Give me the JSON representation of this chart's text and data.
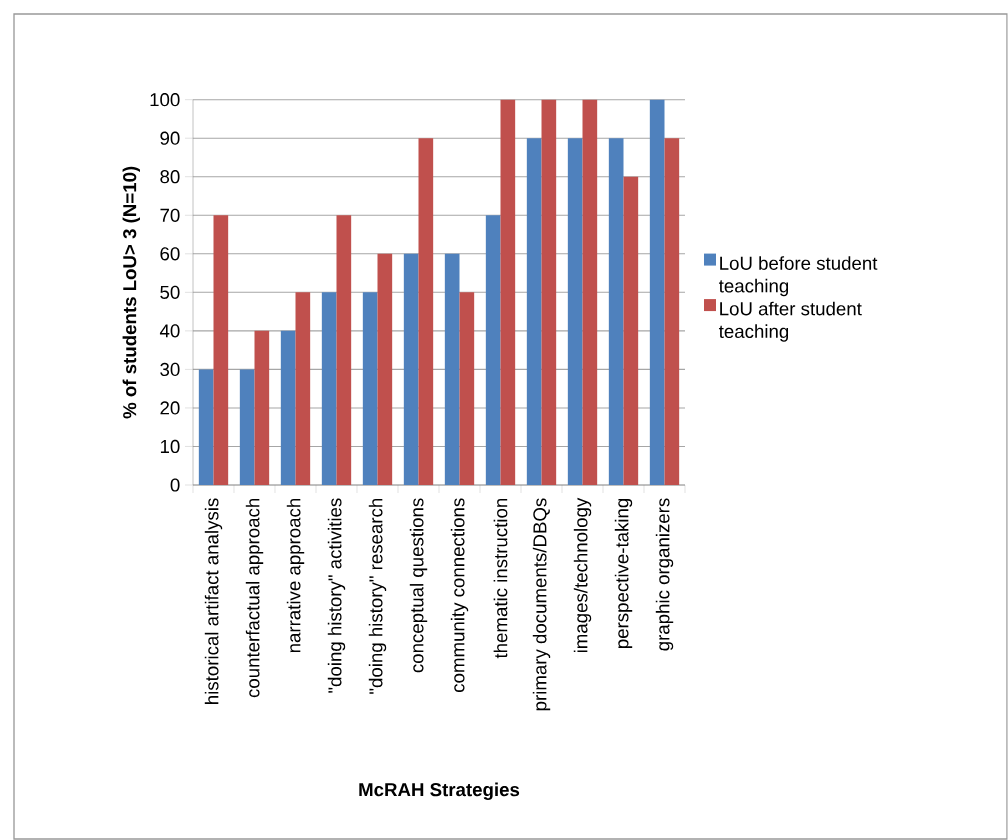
{
  "chart_data": {
    "type": "bar",
    "xlabel": "McRAH Strategies",
    "ylabel": "% of students  LoU> 3 (N=10)",
    "categories": [
      "historical artifact analysis",
      "counterfactual approach",
      "narrative approach",
      "\"doing history\" activities",
      "\"doing history\" research",
      "conceptual questions",
      "community connections",
      "thematic instruction",
      "primary documents/DBQs",
      "images/technology",
      "perspective-taking",
      "graphic organizers"
    ],
    "series": [
      {
        "name": "LoU before student teaching",
        "color": "#4f81bd",
        "values": [
          30,
          30,
          40,
          50,
          50,
          60,
          60,
          70,
          90,
          90,
          90,
          100
        ]
      },
      {
        "name": "LoU after student teaching",
        "color": "#c0504d",
        "values": [
          70,
          40,
          50,
          70,
          60,
          90,
          50,
          100,
          100,
          100,
          80,
          90
        ]
      }
    ],
    "ylim": [
      0,
      100
    ],
    "yticks": [
      0,
      10,
      20,
      30,
      40,
      50,
      60,
      70,
      80,
      90,
      100
    ],
    "grid": "y",
    "legend": "right"
  }
}
